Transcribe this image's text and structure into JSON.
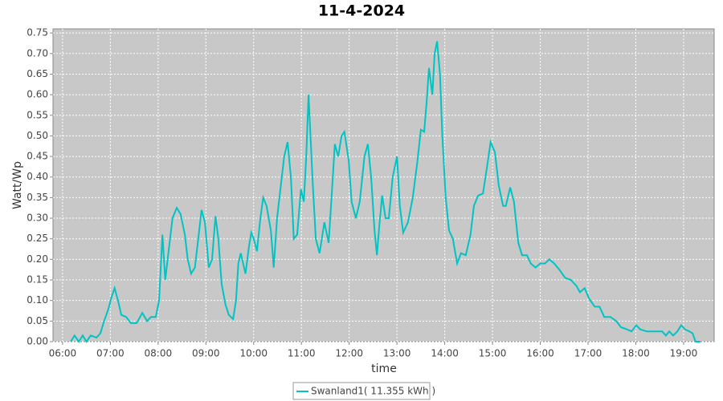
{
  "chart_data": {
    "type": "line",
    "title": "11-4-2024",
    "x_label": "time",
    "y_label": "Watt/Wp",
    "x": [
      6.17,
      6.25,
      6.34,
      6.42,
      6.5,
      6.59,
      6.71,
      6.79,
      6.87,
      6.96,
      7.03,
      7.09,
      7.16,
      7.23,
      7.33,
      7.43,
      7.55,
      7.67,
      7.77,
      7.85,
      7.95,
      8.02,
      8.09,
      8.15,
      8.22,
      8.3,
      8.39,
      8.47,
      8.56,
      8.62,
      8.69,
      8.77,
      8.84,
      8.91,
      8.98,
      9.06,
      9.13,
      9.2,
      9.26,
      9.33,
      9.41,
      9.48,
      9.57,
      9.63,
      9.68,
      9.73,
      9.83,
      9.9,
      9.95,
      10.0,
      10.07,
      10.14,
      10.2,
      10.27,
      10.36,
      10.42,
      10.49,
      10.57,
      10.64,
      10.71,
      10.78,
      10.84,
      10.91,
      10.99,
      11.05,
      11.1,
      11.15,
      11.23,
      11.3,
      11.38,
      11.48,
      11.57,
      11.63,
      11.7,
      11.77,
      11.84,
      11.9,
      11.99,
      12.05,
      12.14,
      12.22,
      12.32,
      12.39,
      12.46,
      12.53,
      12.58,
      12.63,
      12.69,
      12.76,
      12.83,
      12.91,
      13.0,
      13.06,
      13.13,
      13.23,
      13.33,
      13.42,
      13.5,
      13.57,
      13.62,
      13.67,
      13.74,
      13.79,
      13.84,
      13.9,
      13.95,
      14.02,
      14.09,
      14.17,
      14.26,
      14.34,
      14.44,
      14.54,
      14.61,
      14.7,
      14.8,
      14.88,
      14.96,
      15.05,
      15.13,
      15.22,
      15.28,
      15.37,
      15.45,
      15.54,
      15.62,
      15.72,
      15.8,
      15.9,
      16.0,
      16.1,
      16.19,
      16.29,
      16.4,
      16.52,
      16.64,
      16.76,
      16.83,
      16.93,
      17.02,
      17.14,
      17.24,
      17.34,
      17.47,
      17.59,
      17.69,
      17.81,
      17.91,
      18.01,
      18.09,
      18.23,
      18.39,
      18.55,
      18.63,
      18.7,
      18.78,
      18.87,
      18.95,
      19.03,
      19.12,
      19.19,
      19.25,
      19.35
    ],
    "series": [
      {
        "name": "Swanland1( 11.355 kWh )",
        "color": "#00c4c4",
        "values": [
          0,
          0.015,
          0,
          0.015,
          0,
          0.015,
          0.01,
          0.02,
          0.05,
          0.08,
          0.11,
          0.13,
          0.1,
          0.065,
          0.06,
          0.045,
          0.045,
          0.07,
          0.05,
          0.06,
          0.06,
          0.1,
          0.26,
          0.15,
          0.22,
          0.3,
          0.325,
          0.31,
          0.26,
          0.2,
          0.165,
          0.18,
          0.25,
          0.32,
          0.29,
          0.18,
          0.2,
          0.305,
          0.25,
          0.14,
          0.09,
          0.065,
          0.055,
          0.1,
          0.19,
          0.215,
          0.165,
          0.23,
          0.265,
          0.25,
          0.22,
          0.3,
          0.35,
          0.33,
          0.27,
          0.18,
          0.3,
          0.38,
          0.45,
          0.485,
          0.4,
          0.25,
          0.26,
          0.37,
          0.34,
          0.45,
          0.6,
          0.4,
          0.25,
          0.215,
          0.29,
          0.24,
          0.35,
          0.48,
          0.45,
          0.5,
          0.51,
          0.44,
          0.34,
          0.3,
          0.34,
          0.45,
          0.48,
          0.4,
          0.27,
          0.21,
          0.28,
          0.355,
          0.3,
          0.3,
          0.4,
          0.45,
          0.33,
          0.265,
          0.29,
          0.35,
          0.43,
          0.515,
          0.51,
          0.58,
          0.665,
          0.6,
          0.7,
          0.73,
          0.65,
          0.5,
          0.35,
          0.27,
          0.25,
          0.19,
          0.215,
          0.21,
          0.26,
          0.33,
          0.355,
          0.36,
          0.42,
          0.485,
          0.46,
          0.38,
          0.33,
          0.33,
          0.375,
          0.34,
          0.24,
          0.21,
          0.21,
          0.19,
          0.18,
          0.19,
          0.19,
          0.2,
          0.19,
          0.175,
          0.155,
          0.15,
          0.135,
          0.12,
          0.13,
          0.105,
          0.085,
          0.085,
          0.06,
          0.06,
          0.05,
          0.035,
          0.03,
          0.025,
          0.04,
          0.03,
          0.025,
          0.025,
          0.025,
          0.015,
          0.025,
          0.015,
          0.025,
          0.04,
          0.03,
          0.025,
          0.02,
          0,
          0
        ]
      }
    ],
    "xlim": [
      5.8,
      19.64
    ],
    "ylim": [
      0,
      0.76
    ],
    "xticks": [
      {
        "value": 6,
        "label": "06:00"
      },
      {
        "value": 7,
        "label": "07:00"
      },
      {
        "value": 8,
        "label": "08:00"
      },
      {
        "value": 9,
        "label": "09:00"
      },
      {
        "value": 10,
        "label": "10:00"
      },
      {
        "value": 11,
        "label": "11:00"
      },
      {
        "value": 12,
        "label": "12:00"
      },
      {
        "value": 13,
        "label": "13:00"
      },
      {
        "value": 14,
        "label": "14:00"
      },
      {
        "value": 15,
        "label": "15:00"
      },
      {
        "value": 16,
        "label": "16:00"
      },
      {
        "value": 17,
        "label": "17:00"
      },
      {
        "value": 18,
        "label": "18:00"
      },
      {
        "value": 19,
        "label": "19:00"
      }
    ],
    "yticks": [
      {
        "value": 0,
        "label": "0.00"
      },
      {
        "value": 0.05,
        "label": "0.05"
      },
      {
        "value": 0.1,
        "label": "0.10"
      },
      {
        "value": 0.15,
        "label": "0.15"
      },
      {
        "value": 0.2,
        "label": "0.20"
      },
      {
        "value": 0.25,
        "label": "0.25"
      },
      {
        "value": 0.3,
        "label": "0.30"
      },
      {
        "value": 0.35,
        "label": "0.35"
      },
      {
        "value": 0.4,
        "label": "0.40"
      },
      {
        "value": 0.45,
        "label": "0.45"
      },
      {
        "value": 0.5,
        "label": "0.50"
      },
      {
        "value": 0.55,
        "label": "0.55"
      },
      {
        "value": 0.6,
        "label": "0.60"
      },
      {
        "value": 0.65,
        "label": "0.65"
      },
      {
        "value": 0.7,
        "label": "0.70"
      },
      {
        "value": 0.75,
        "label": "0.75"
      }
    ],
    "grid": true
  }
}
